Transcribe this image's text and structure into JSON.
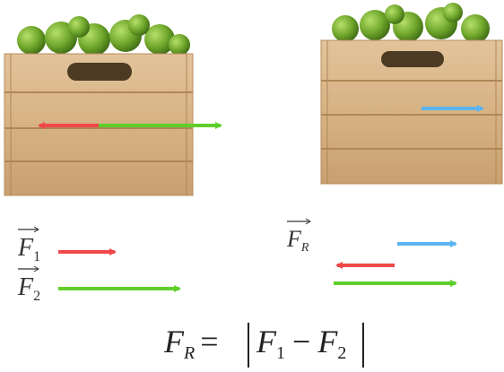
{
  "vectors": [
    {
      "symbol": "F",
      "subscript": "1"
    },
    {
      "symbol": "F",
      "subscript": "2"
    },
    {
      "symbol": "F",
      "subscript": "R"
    }
  ],
  "formula": {
    "lhs": {
      "symbol": "F",
      "subscript": "R"
    },
    "equals": "=",
    "rhs": [
      {
        "symbol": "F",
        "subscript": "1"
      },
      {
        "operator": "−"
      },
      {
        "symbol": "F",
        "subscript": "2"
      }
    ]
  }
}
